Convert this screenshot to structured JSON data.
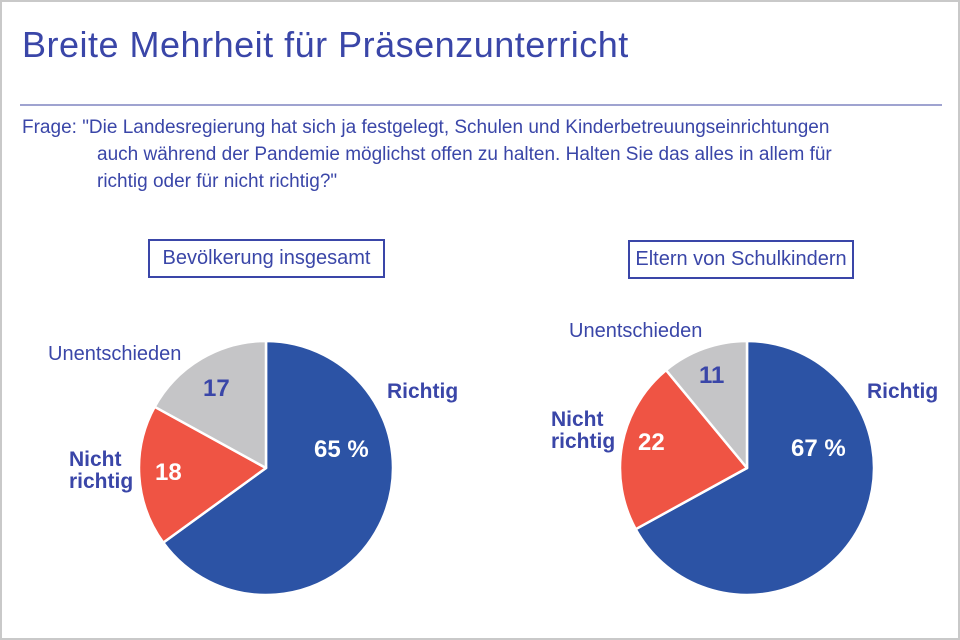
{
  "page": {
    "title": "Breite Mehrheit für Präsenzunterricht",
    "question_lines": [
      "Frage: \"Die Landesregierung hat sich ja festgelegt, Schulen und Kinderbetreuungseinrichtungen",
      "auch während der Pandemie möglichst offen zu halten. Halten Sie das alles in allem für",
      "richtig oder für nicht richtig?\""
    ]
  },
  "colors": {
    "ink_blue": "#3a46a8",
    "divider": "#9fa3d0",
    "frame_border": "#c9c9c9",
    "pie_blue": "#2c53a5",
    "pie_red": "#ef5444",
    "pie_gray": "#c5c5c7",
    "value_white": "#ffffff"
  },
  "chart_data": [
    {
      "type": "pie",
      "group_label": "Bevölkerung insgesamt",
      "unit": "%",
      "start_angle_deg": 0,
      "direction": "clockwise",
      "slices": [
        {
          "label": "Richtig",
          "value": 65,
          "display": "65 %",
          "color": "#2c53a5",
          "value_color": "#ffffff"
        },
        {
          "label": "Nicht richtig",
          "value": 18,
          "display": "18",
          "color": "#ef5444",
          "value_color": "#ffffff"
        },
        {
          "label": "Unentschieden",
          "value": 17,
          "display": "17",
          "color": "#c5c5c7",
          "value_color": "#3a46a8"
        }
      ]
    },
    {
      "type": "pie",
      "group_label": "Eltern von Schulkindern",
      "unit": "%",
      "start_angle_deg": 0,
      "direction": "clockwise",
      "slices": [
        {
          "label": "Richtig",
          "value": 67,
          "display": "67 %",
          "color": "#2c53a5",
          "value_color": "#ffffff"
        },
        {
          "label": "Nicht richtig",
          "value": 22,
          "display": "22",
          "color": "#ef5444",
          "value_color": "#ffffff"
        },
        {
          "label": "Unentschieden",
          "value": 11,
          "display": "11",
          "color": "#c5c5c7",
          "value_color": "#3a46a8"
        }
      ]
    }
  ]
}
